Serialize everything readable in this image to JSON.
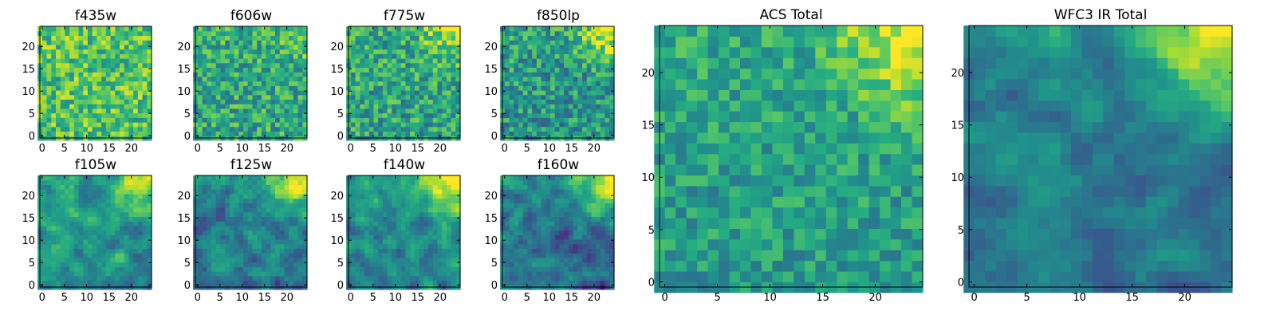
{
  "colormap": "viridis",
  "colors": {
    "low": "#440154",
    "mid": "#21918c",
    "high": "#fde725",
    "frame": "#000000",
    "background": "#ffffff"
  },
  "chart_data": [
    {
      "type": "heatmap",
      "title": "f435w",
      "xticks": [
        "0",
        "5",
        "10",
        "15",
        "20"
      ],
      "yticks": [
        "0",
        "5",
        "10",
        "15",
        "20"
      ],
      "grid_size": 25,
      "xlim": [
        0,
        24
      ],
      "ylim": [
        0,
        24
      ],
      "value_range": [
        0,
        1
      ],
      "texture": "noise",
      "seed": 11,
      "bias": 0.72,
      "spread": 0.45,
      "corner_boost": 0.0
    },
    {
      "type": "heatmap",
      "title": "f606w",
      "xticks": [
        "0",
        "5",
        "10",
        "15",
        "20"
      ],
      "yticks": [
        "0",
        "5",
        "10",
        "15",
        "20"
      ],
      "grid_size": 25,
      "xlim": [
        0,
        24
      ],
      "ylim": [
        0,
        24
      ],
      "value_range": [
        0,
        1
      ],
      "texture": "noise",
      "seed": 23,
      "bias": 0.6,
      "spread": 0.45,
      "corner_boost": 0.15
    },
    {
      "type": "heatmap",
      "title": "f775w",
      "xticks": [
        "0",
        "5",
        "10",
        "15",
        "20"
      ],
      "yticks": [
        "0",
        "5",
        "10",
        "15",
        "20"
      ],
      "grid_size": 25,
      "xlim": [
        0,
        24
      ],
      "ylim": [
        0,
        24
      ],
      "value_range": [
        0,
        1
      ],
      "texture": "noise",
      "seed": 37,
      "bias": 0.58,
      "spread": 0.45,
      "corner_boost": 0.35
    },
    {
      "type": "heatmap",
      "title": "f850lp",
      "xticks": [
        "0",
        "5",
        "10",
        "15",
        "20"
      ],
      "yticks": [
        "0",
        "5",
        "10",
        "15",
        "20"
      ],
      "grid_size": 25,
      "xlim": [
        0,
        24
      ],
      "ylim": [
        0,
        24
      ],
      "value_range": [
        0,
        1
      ],
      "texture": "noise",
      "seed": 41,
      "bias": 0.52,
      "spread": 0.45,
      "corner_boost": 0.45
    },
    {
      "type": "heatmap",
      "title": "f105w",
      "xticks": [
        "0",
        "5",
        "10",
        "15",
        "20"
      ],
      "yticks": [
        "0",
        "5",
        "10",
        "15",
        "20"
      ],
      "grid_size": 25,
      "xlim": [
        0,
        24
      ],
      "ylim": [
        0,
        24
      ],
      "value_range": [
        0,
        1
      ],
      "texture": "smooth",
      "seed": 53,
      "bias": 0.5,
      "spread": 0.3,
      "corner_boost": 0.55
    },
    {
      "type": "heatmap",
      "title": "f125w",
      "xticks": [
        "0",
        "5",
        "10",
        "15",
        "20"
      ],
      "yticks": [
        "0",
        "5",
        "10",
        "15",
        "20"
      ],
      "grid_size": 25,
      "xlim": [
        0,
        24
      ],
      "ylim": [
        0,
        24
      ],
      "value_range": [
        0,
        1
      ],
      "texture": "smooth",
      "seed": 67,
      "bias": 0.42,
      "spread": 0.32,
      "corner_boost": 0.6
    },
    {
      "type": "heatmap",
      "title": "f140w",
      "xticks": [
        "0",
        "5",
        "10",
        "15",
        "20"
      ],
      "yticks": [
        "0",
        "5",
        "10",
        "15",
        "20"
      ],
      "grid_size": 25,
      "xlim": [
        0,
        24
      ],
      "ylim": [
        0,
        24
      ],
      "value_range": [
        0,
        1
      ],
      "texture": "smooth",
      "seed": 79,
      "bias": 0.48,
      "spread": 0.3,
      "corner_boost": 0.6
    },
    {
      "type": "heatmap",
      "title": "f160w",
      "xticks": [
        "0",
        "5",
        "10",
        "15",
        "20"
      ],
      "yticks": [
        "0",
        "5",
        "10",
        "15",
        "20"
      ],
      "grid_size": 25,
      "xlim": [
        0,
        24
      ],
      "ylim": [
        0,
        24
      ],
      "value_range": [
        0,
        1
      ],
      "texture": "smooth",
      "seed": 83,
      "bias": 0.38,
      "spread": 0.32,
      "corner_boost": 0.65
    },
    {
      "type": "heatmap",
      "title": "ACS Total",
      "xticks": [
        "0",
        "5",
        "10",
        "15",
        "20"
      ],
      "yticks": [
        "0",
        "5",
        "10",
        "15",
        "20"
      ],
      "grid_size": 25,
      "xlim": [
        0,
        24
      ],
      "ylim": [
        0,
        24
      ],
      "value_range": [
        0,
        1
      ],
      "texture": "noise",
      "seed": 97,
      "bias": 0.55,
      "spread": 0.32,
      "corner_boost": 0.45
    },
    {
      "type": "heatmap",
      "title": "WFC3 IR Total",
      "xticks": [
        "0",
        "5",
        "10",
        "15",
        "20"
      ],
      "yticks": [
        "0",
        "5",
        "10",
        "15",
        "20"
      ],
      "grid_size": 25,
      "xlim": [
        0,
        24
      ],
      "ylim": [
        0,
        24
      ],
      "value_range": [
        0,
        1
      ],
      "texture": "smooth",
      "seed": 101,
      "bias": 0.4,
      "spread": 0.22,
      "corner_boost": 0.6
    }
  ]
}
